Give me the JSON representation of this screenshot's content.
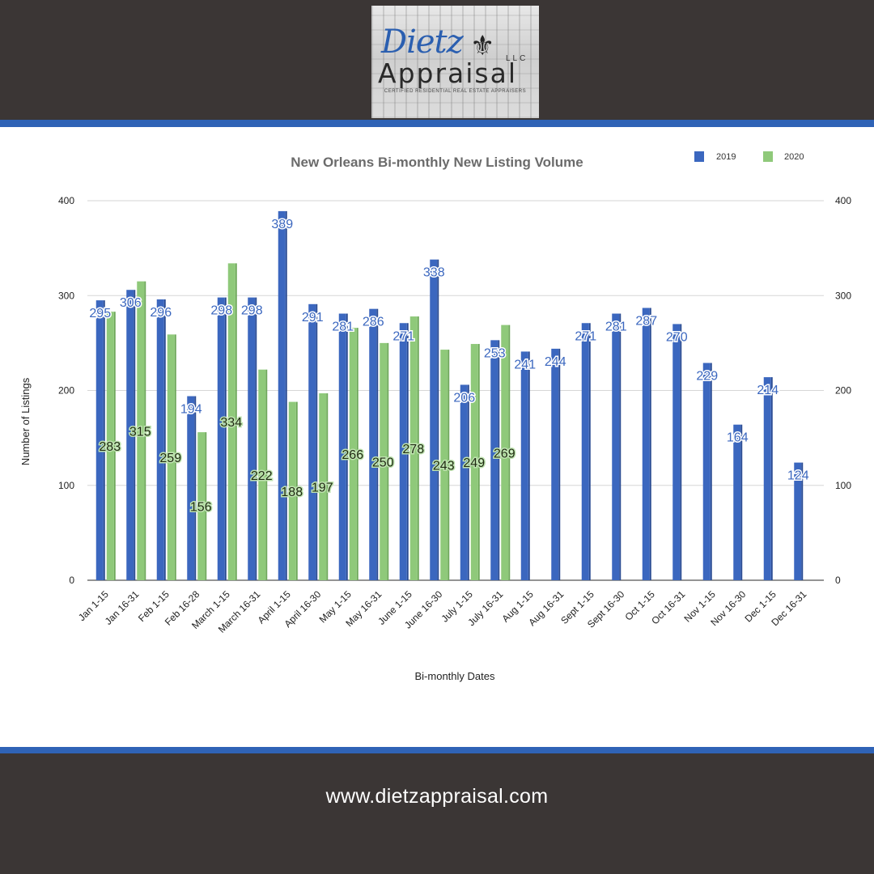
{
  "logo": {
    "script_text": "Dietz",
    "llc_text": "LLC",
    "wordmark": "Appraisal",
    "tagline": "CERTIFIED RESIDENTIAL REAL ESTATE APPRAISERS",
    "icon": "fleur-de-lis-icon"
  },
  "footer": {
    "url": "www.dietzappraisal.com"
  },
  "colors": {
    "series_2019": "#3b67bf",
    "series_2020": "#8fc97a",
    "accent_stripe": "#2f63b6",
    "background_dark": "#3b3635"
  },
  "chart_data": {
    "type": "bar",
    "title": "New Orleans Bi-monthly New Listing Volume",
    "xlabel": "Bi-monthly Dates",
    "ylabel": "Number of Listings",
    "ylim": [
      0,
      400
    ],
    "yticks": [
      "0",
      "100",
      "200",
      "300",
      "400"
    ],
    "grid": true,
    "legend_position": "top-right",
    "categories": [
      "Jan 1-15",
      "Jan 16-31",
      "Feb 1-15",
      "Feb 16-28",
      "March 1-15",
      "March 16-31",
      "April 1-15",
      "April 16-30",
      "May 1-15",
      "May 16-31",
      "June 1-15",
      "June 16-30",
      "July 1-15",
      "July 16-31",
      "Aug 1-15",
      "Aug 16-31",
      "Sept 1-15",
      "Sept 16-30",
      "Oct 1-15",
      "Oct 16-31",
      "Nov 1-15",
      "Nov 16-30",
      "Dec 1-15",
      "Dec 16-31"
    ],
    "series": [
      {
        "name": "2019",
        "values": [
          295,
          306,
          296,
          194,
          298,
          298,
          389,
          291,
          281,
          286,
          271,
          338,
          206,
          253,
          241,
          244,
          271,
          281,
          287,
          270,
          229,
          164,
          214,
          124
        ]
      },
      {
        "name": "2020",
        "values": [
          283,
          315,
          259,
          156,
          334,
          222,
          188,
          197,
          266,
          250,
          278,
          243,
          249,
          269,
          null,
          null,
          null,
          null,
          null,
          null,
          null,
          null,
          null,
          null
        ]
      }
    ]
  }
}
